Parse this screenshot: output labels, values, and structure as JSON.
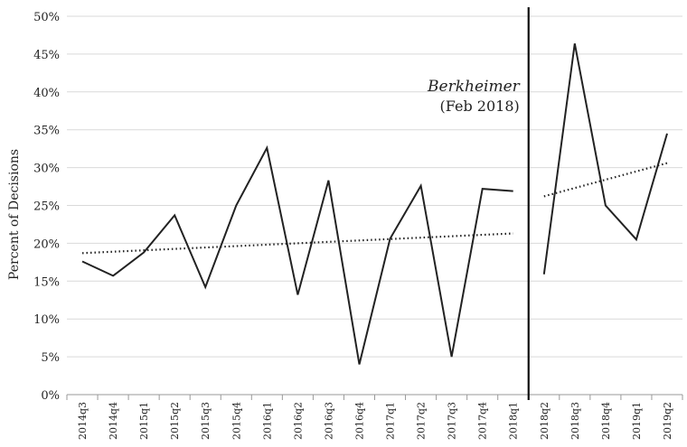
{
  "chart_data": {
    "type": "line",
    "ylabel": "Percent of Decisions",
    "xlabel": "",
    "ylim": [
      0,
      50
    ],
    "ytick_labels": [
      "0%",
      "5%",
      "10%",
      "15%",
      "20%",
      "25%",
      "30%",
      "35%",
      "40%",
      "45%",
      "50%"
    ],
    "grid": "horizontal",
    "categories": [
      "2014q3",
      "2014q4",
      "2015q1",
      "2015q2",
      "2015q3",
      "2015q4",
      "2016q1",
      "2016q2",
      "2016q3",
      "2016q4",
      "2017q1",
      "2017q2",
      "2017q3",
      "2017q4",
      "2018q1",
      "2018q2",
      "2018q3",
      "2018q4",
      "2019q1",
      "2019q2"
    ],
    "series": [
      {
        "style": "solid",
        "segments": [
          {
            "categories": [
              "2014q3",
              "2014q4",
              "2015q1",
              "2015q2",
              "2015q3",
              "2015q4",
              "2016q1",
              "2016q2",
              "2016q3",
              "2016q4",
              "2017q1",
              "2017q2",
              "2017q3",
              "2017q4",
              "2018q1"
            ],
            "values": [
              17.6,
              15.7,
              18.8,
              23.7,
              14.2,
              25.0,
              32.6,
              13.2,
              28.3,
              4.0,
              20.6,
              27.6,
              5.0,
              27.2,
              26.9
            ]
          },
          {
            "categories": [
              "2018q2",
              "2018q3",
              "2018q4",
              "2019q1",
              "2019q2"
            ],
            "values": [
              15.9,
              46.4,
              25.0,
              20.5,
              34.5
            ]
          }
        ]
      },
      {
        "style": "dotted",
        "segments": [
          {
            "categories": [
              "2014q3",
              "2018q1"
            ],
            "values": [
              18.7,
              21.3
            ]
          },
          {
            "categories": [
              "2018q2",
              "2019q2"
            ],
            "values": [
              26.2,
              30.6
            ]
          }
        ]
      }
    ],
    "vline": {
      "between": [
        "2018q1",
        "2018q2"
      ],
      "label_italic": "Berkheimer",
      "label": "(Feb 2018)"
    }
  }
}
